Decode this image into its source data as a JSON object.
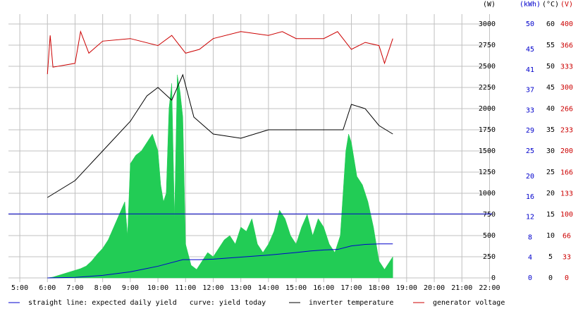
{
  "chart_data": {
    "type": "line",
    "xlim": [
      4.59,
      22.09
    ],
    "xticks": [
      {
        "value": 5,
        "label": "5:00"
      },
      {
        "value": 6,
        "label": "6:00"
      },
      {
        "value": 7,
        "label": "7:00"
      },
      {
        "value": 8,
        "label": "8:00"
      },
      {
        "value": 9,
        "label": "9:00"
      },
      {
        "value": 10,
        "label": "10:00"
      },
      {
        "value": 11,
        "label": "11:00"
      },
      {
        "value": 12,
        "label": "12:00"
      },
      {
        "value": 13,
        "label": "13:00"
      },
      {
        "value": 14,
        "label": "14:00"
      },
      {
        "value": 15,
        "label": "15:00"
      },
      {
        "value": 16,
        "label": "16:00"
      },
      {
        "value": 17,
        "label": "17:00"
      },
      {
        "value": 18,
        "label": "18:00"
      },
      {
        "value": 19,
        "label": "19:00"
      },
      {
        "value": 20,
        "label": "20:00"
      },
      {
        "value": 21,
        "label": "21:00"
      },
      {
        "value": 22,
        "label": "22:00"
      }
    ],
    "axes": [
      {
        "id": "y",
        "label": "(W)",
        "color": "#000000",
        "lim": [
          0,
          3000
        ],
        "ticks": [
          0,
          250,
          500,
          750,
          1000,
          1250,
          1500,
          1750,
          2000,
          2250,
          2500,
          2750,
          3000
        ]
      },
      {
        "id": "y2",
        "label": "(kWh)",
        "color": "#0000cc",
        "lim": [
          0,
          50
        ],
        "ticks": [
          0,
          4,
          8,
          12,
          16,
          20,
          25,
          29,
          33,
          37,
          41,
          45,
          50
        ]
      },
      {
        "id": "y3",
        "label": "(°C)",
        "color": "#000000",
        "lim": [
          0,
          60
        ],
        "ticks": [
          0,
          5,
          10,
          15,
          20,
          25,
          30,
          35,
          40,
          45,
          50,
          55,
          60
        ]
      },
      {
        "id": "y4",
        "label": "(V)",
        "color": "#cc0000",
        "lim": [
          0,
          400
        ],
        "ticks": [
          0,
          33,
          66,
          100,
          133,
          166,
          200,
          233,
          266,
          300,
          333,
          366,
          400
        ]
      }
    ],
    "grid": true,
    "series": [
      {
        "axis": "y",
        "kind": "area",
        "color": "#22cc55",
        "x": [
          6.0,
          6.2,
          6.4,
          6.6,
          6.8,
          7.0,
          7.2,
          7.4,
          7.6,
          7.8,
          8.0,
          8.2,
          8.4,
          8.6,
          8.8,
          8.9,
          9.0,
          9.2,
          9.4,
          9.6,
          9.8,
          10.0,
          10.1,
          10.2,
          10.3,
          10.4,
          10.5,
          10.6,
          10.7,
          10.8,
          10.9,
          11.0,
          11.2,
          11.4,
          11.6,
          11.8,
          12.0,
          12.2,
          12.4,
          12.6,
          12.8,
          13.0,
          13.2,
          13.4,
          13.6,
          13.8,
          14.0,
          14.2,
          14.4,
          14.6,
          14.8,
          15.0,
          15.2,
          15.4,
          15.6,
          15.8,
          16.0,
          16.2,
          16.4,
          16.6,
          16.8,
          16.9,
          17.0,
          17.2,
          17.4,
          17.6,
          17.8,
          18.0,
          18.2,
          18.4,
          18.5
        ],
        "values": [
          0,
          10,
          30,
          50,
          70,
          90,
          110,
          140,
          200,
          280,
          350,
          450,
          600,
          750,
          900,
          500,
          1350,
          1450,
          1500,
          1600,
          1700,
          1500,
          1100,
          900,
          1000,
          2000,
          2300,
          700,
          2400,
          2200,
          1900,
          400,
          150,
          100,
          200,
          300,
          250,
          350,
          450,
          500,
          400,
          600,
          550,
          700,
          400,
          300,
          400,
          550,
          800,
          700,
          500,
          400,
          600,
          750,
          500,
          700,
          600,
          400,
          300,
          500,
          1500,
          1700,
          1600,
          1200,
          1100,
          900,
          600,
          200,
          100,
          200,
          250
        ]
      },
      {
        "axis": "y2",
        "kind": "line",
        "color": "#0000cc",
        "x": [
          4.59,
          22.09
        ],
        "values": [
          12.6,
          12.6
        ]
      },
      {
        "axis": "y2",
        "kind": "line",
        "color": "#0000cc",
        "x": [
          6,
          7,
          8,
          9,
          10,
          10.9,
          11.5,
          12,
          13,
          14,
          15,
          15.5,
          16,
          16.5,
          17,
          17.5,
          18,
          18.5
        ],
        "values": [
          0,
          0.1,
          0.5,
          1.2,
          2.3,
          3.6,
          3.6,
          3.7,
          4.1,
          4.5,
          5,
          5.3,
          5.5,
          5.6,
          6.3,
          6.6,
          6.7,
          6.7
        ]
      },
      {
        "axis": "y3",
        "kind": "line",
        "color": "#000000",
        "x": [
          6,
          7,
          8,
          9,
          9.6,
          10,
          10.5,
          10.9,
          11.3,
          12,
          13,
          14,
          15,
          16,
          16.7,
          17,
          17.5,
          18,
          18.5
        ],
        "values": [
          19,
          23,
          30,
          37,
          43,
          45,
          42,
          48,
          38,
          34,
          33,
          35,
          35,
          35,
          35,
          41,
          40,
          36,
          34
        ]
      },
      {
        "axis": "y4",
        "kind": "line",
        "color": "#cc0000",
        "x": [
          6,
          6.1,
          6.2,
          7,
          7.2,
          7.5,
          8,
          9,
          10,
          10.5,
          11,
          11.5,
          12,
          13,
          14,
          14.5,
          15,
          16,
          16.5,
          17,
          17.5,
          18,
          18.2,
          18.5
        ],
        "values": [
          321,
          382,
          332,
          338,
          388,
          354,
          373,
          377,
          366,
          382,
          354,
          360,
          377,
          388,
          382,
          388,
          377,
          377,
          388,
          360,
          371,
          366,
          338,
          377
        ]
      }
    ],
    "legend": [
      {
        "label": "straight line: expected daily yield   curve: yield today",
        "color": "#0000cc"
      },
      {
        "label": "inverter temperature",
        "color": "#000000"
      },
      {
        "label": "generator voltage",
        "color": "#cc0000"
      }
    ]
  }
}
